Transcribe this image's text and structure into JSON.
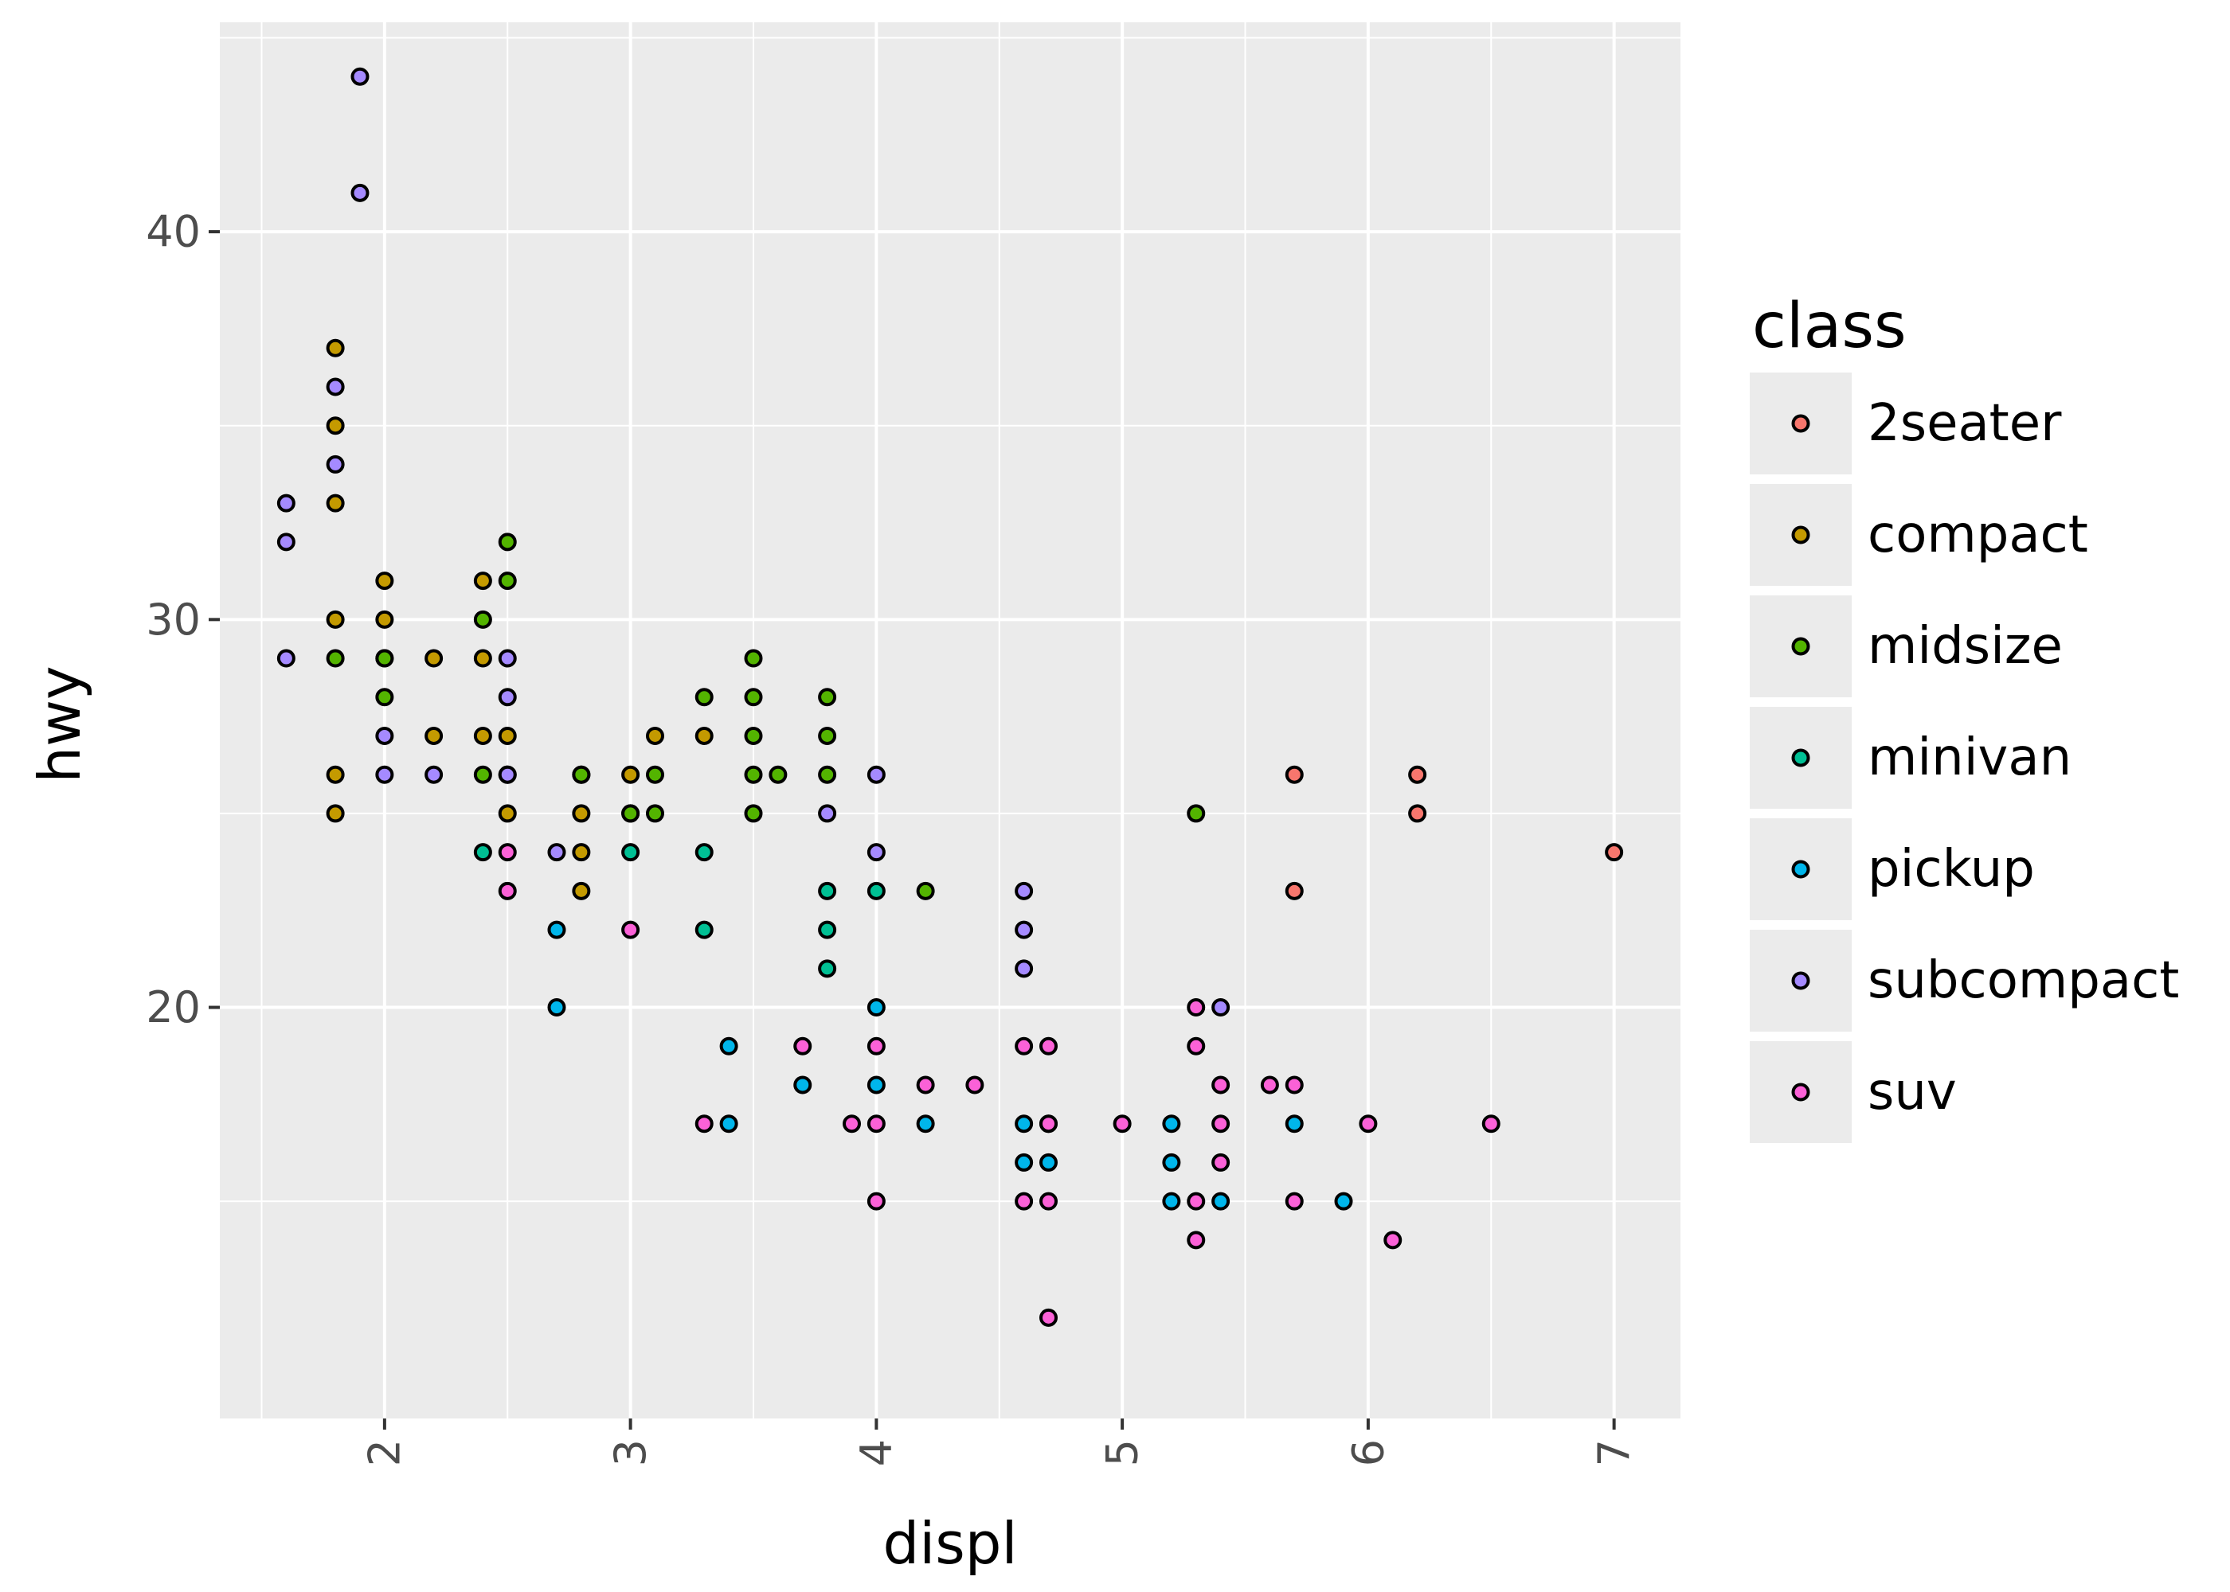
{
  "chart_data": {
    "type": "scatter",
    "xlabel": "displ",
    "ylabel": "hwy",
    "xlim": [
      1.33,
      7.27
    ],
    "ylim": [
      9.4,
      45.4
    ],
    "x_ticks": [
      2,
      3,
      4,
      5,
      6,
      7
    ],
    "y_ticks": [
      20,
      30,
      40
    ],
    "x_tick_rotation": -90,
    "grid": true,
    "legend": {
      "title": "class",
      "placement": "right",
      "entries": [
        {
          "label": "2seater",
          "color": "#F8766D"
        },
        {
          "label": "compact",
          "color": "#C49A00"
        },
        {
          "label": "midsize",
          "color": "#53B400"
        },
        {
          "label": "minivan",
          "color": "#00C094"
        },
        {
          "label": "pickup",
          "color": "#00B6EB"
        },
        {
          "label": "subcompact",
          "color": "#A58AFF"
        },
        {
          "label": "suv",
          "color": "#FB61D7"
        }
      ]
    },
    "marker": {
      "fill": "by-class",
      "stroke": "#000000",
      "shape": "circle"
    },
    "series": [
      {
        "name": "2seater",
        "points": [
          [
            5.7,
            26
          ],
          [
            5.7,
            23
          ],
          [
            6.2,
            26
          ],
          [
            6.2,
            25
          ],
          [
            7.0,
            24
          ]
        ]
      },
      {
        "name": "compact",
        "points": [
          [
            1.8,
            37
          ],
          [
            1.8,
            35
          ],
          [
            1.8,
            33
          ],
          [
            1.8,
            30
          ],
          [
            1.8,
            26
          ],
          [
            1.8,
            25
          ],
          [
            2.0,
            31
          ],
          [
            2.0,
            30
          ],
          [
            2.0,
            29
          ],
          [
            2.2,
            29
          ],
          [
            2.2,
            27
          ],
          [
            2.4,
            31
          ],
          [
            2.4,
            29
          ],
          [
            2.4,
            27
          ],
          [
            2.5,
            27
          ],
          [
            2.5,
            26
          ],
          [
            2.5,
            25
          ],
          [
            2.8,
            26
          ],
          [
            2.8,
            25
          ],
          [
            2.8,
            24
          ],
          [
            2.8,
            23
          ],
          [
            3.0,
            26
          ],
          [
            3.0,
            25
          ],
          [
            3.1,
            27
          ],
          [
            3.3,
            27
          ]
        ]
      },
      {
        "name": "midsize",
        "points": [
          [
            1.8,
            29
          ],
          [
            2.0,
            29
          ],
          [
            2.0,
            28
          ],
          [
            2.4,
            30
          ],
          [
            2.4,
            26
          ],
          [
            2.5,
            32
          ],
          [
            2.5,
            31
          ],
          [
            2.8,
            26
          ],
          [
            3.0,
            25
          ],
          [
            3.1,
            26
          ],
          [
            3.1,
            25
          ],
          [
            3.3,
            28
          ],
          [
            3.5,
            29
          ],
          [
            3.5,
            28
          ],
          [
            3.5,
            27
          ],
          [
            3.5,
            26
          ],
          [
            3.5,
            25
          ],
          [
            3.6,
            26
          ],
          [
            3.8,
            28
          ],
          [
            3.8,
            27
          ],
          [
            3.8,
            26
          ],
          [
            4.2,
            23
          ],
          [
            5.3,
            25
          ]
        ]
      },
      {
        "name": "minivan",
        "points": [
          [
            2.4,
            24
          ],
          [
            3.0,
            24
          ],
          [
            3.3,
            24
          ],
          [
            3.3,
            22
          ],
          [
            3.8,
            23
          ],
          [
            3.8,
            22
          ],
          [
            3.8,
            21
          ],
          [
            4.0,
            23
          ]
        ]
      },
      {
        "name": "pickup",
        "points": [
          [
            2.7,
            22
          ],
          [
            2.7,
            20
          ],
          [
            3.4,
            19
          ],
          [
            3.4,
            17
          ],
          [
            3.7,
            18
          ],
          [
            4.0,
            20
          ],
          [
            4.0,
            18
          ],
          [
            4.2,
            17
          ],
          [
            4.6,
            17
          ],
          [
            4.6,
            16
          ],
          [
            4.7,
            17
          ],
          [
            4.7,
            16
          ],
          [
            5.2,
            17
          ],
          [
            5.2,
            16
          ],
          [
            5.2,
            15
          ],
          [
            5.4,
            15
          ],
          [
            5.7,
            17
          ],
          [
            5.9,
            15
          ]
        ]
      },
      {
        "name": "subcompact",
        "points": [
          [
            1.6,
            33
          ],
          [
            1.6,
            32
          ],
          [
            1.6,
            29
          ],
          [
            1.8,
            36
          ],
          [
            1.8,
            34
          ],
          [
            1.9,
            44
          ],
          [
            1.9,
            41
          ],
          [
            2.0,
            27
          ],
          [
            2.0,
            26
          ],
          [
            2.2,
            26
          ],
          [
            2.5,
            29
          ],
          [
            2.5,
            28
          ],
          [
            2.5,
            26
          ],
          [
            2.7,
            24
          ],
          [
            3.8,
            25
          ],
          [
            4.0,
            26
          ],
          [
            4.0,
            24
          ],
          [
            4.6,
            23
          ],
          [
            4.6,
            22
          ],
          [
            4.6,
            21
          ],
          [
            5.4,
            20
          ]
        ]
      },
      {
        "name": "suv",
        "points": [
          [
            2.5,
            24
          ],
          [
            2.5,
            23
          ],
          [
            3.0,
            22
          ],
          [
            3.3,
            17
          ],
          [
            3.7,
            19
          ],
          [
            3.9,
            17
          ],
          [
            4.0,
            19
          ],
          [
            4.0,
            17
          ],
          [
            4.0,
            15
          ],
          [
            4.2,
            18
          ],
          [
            4.4,
            18
          ],
          [
            4.6,
            19
          ],
          [
            4.6,
            15
          ],
          [
            4.7,
            19
          ],
          [
            4.7,
            17
          ],
          [
            4.7,
            15
          ],
          [
            4.7,
            12
          ],
          [
            5.0,
            17
          ],
          [
            5.3,
            20
          ],
          [
            5.3,
            19
          ],
          [
            5.3,
            15
          ],
          [
            5.3,
            14
          ],
          [
            5.4,
            18
          ],
          [
            5.4,
            17
          ],
          [
            5.4,
            16
          ],
          [
            5.6,
            18
          ],
          [
            5.7,
            18
          ],
          [
            5.7,
            15
          ],
          [
            6.0,
            17
          ],
          [
            6.1,
            14
          ],
          [
            6.5,
            17
          ]
        ]
      }
    ]
  }
}
